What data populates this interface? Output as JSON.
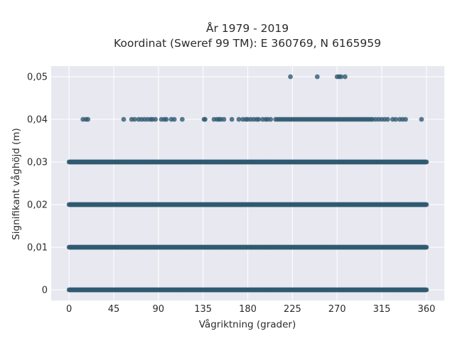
{
  "chart_data": {
    "type": "scatter",
    "title_lines": [
      "År 1979 - 2019",
      "Koordinat (Sweref 99 TM): E 360769, N 6165959"
    ],
    "xlabel": "Vågriktning (grader)",
    "ylabel": "Signifikant våghöjd (m)",
    "xlim": [
      -18,
      378
    ],
    "ylim": [
      -0.0025,
      0.0525
    ],
    "xticks": [
      0,
      45,
      90,
      135,
      180,
      225,
      270,
      315,
      360
    ],
    "xtick_labels": [
      "0",
      "45",
      "90",
      "135",
      "180",
      "225",
      "270",
      "315",
      "360"
    ],
    "yticks": [
      0,
      0.01,
      0.02,
      0.03,
      0.04,
      0.05
    ],
    "ytick_labels": [
      "0",
      "0,01",
      "0,02",
      "0,03",
      "0,04",
      "0,05"
    ],
    "grid": true,
    "legend": "none",
    "marker_color": "#305a71",
    "background_color": "#e8e8f0",
    "grid_color": "#ffffff",
    "series": [
      {
        "dense_ranges": [
          {
            "y": 0,
            "x_start": 0,
            "x_end": 360
          },
          {
            "y": 0.01,
            "x_start": 0,
            "x_end": 360
          },
          {
            "y": 0.02,
            "x_start": 0,
            "x_end": 360
          },
          {
            "y": 0.03,
            "x_start": 0,
            "x_end": 360
          }
        ],
        "points": [
          {
            "x": 14,
            "y": 0.04
          },
          {
            "x": 17,
            "y": 0.04
          },
          {
            "x": 19,
            "y": 0.04
          },
          {
            "x": 55,
            "y": 0.04
          },
          {
            "x": 63,
            "y": 0.04
          },
          {
            "x": 66,
            "y": 0.04
          },
          {
            "x": 70,
            "y": 0.04
          },
          {
            "x": 73,
            "y": 0.04
          },
          {
            "x": 76,
            "y": 0.04
          },
          {
            "x": 79,
            "y": 0.04
          },
          {
            "x": 82,
            "y": 0.04
          },
          {
            "x": 84,
            "y": 0.04
          },
          {
            "x": 87,
            "y": 0.04
          },
          {
            "x": 93,
            "y": 0.04
          },
          {
            "x": 96,
            "y": 0.04
          },
          {
            "x": 98,
            "y": 0.04
          },
          {
            "x": 103,
            "y": 0.04
          },
          {
            "x": 106,
            "y": 0.04
          },
          {
            "x": 114,
            "y": 0.04
          },
          {
            "x": 136,
            "y": 0.04
          },
          {
            "x": 137,
            "y": 0.04
          },
          {
            "x": 146,
            "y": 0.04
          },
          {
            "x": 149,
            "y": 0.04
          },
          {
            "x": 151,
            "y": 0.04
          },
          {
            "x": 153,
            "y": 0.04
          },
          {
            "x": 156,
            "y": 0.04
          },
          {
            "x": 164,
            "y": 0.04
          },
          {
            "x": 171,
            "y": 0.04
          },
          {
            "x": 175,
            "y": 0.04
          },
          {
            "x": 178,
            "y": 0.04
          },
          {
            "x": 180,
            "y": 0.04
          },
          {
            "x": 183,
            "y": 0.04
          },
          {
            "x": 186,
            "y": 0.04
          },
          {
            "x": 189,
            "y": 0.04
          },
          {
            "x": 191,
            "y": 0.04
          },
          {
            "x": 195,
            "y": 0.04
          },
          {
            "x": 198,
            "y": 0.04
          },
          {
            "x": 200,
            "y": 0.04
          },
          {
            "x": 203,
            "y": 0.04
          },
          {
            "x": 208,
            "y": 0.04
          },
          {
            "x": 210,
            "y": 0.04
          },
          {
            "x": 212,
            "y": 0.04
          },
          {
            "x": 214,
            "y": 0.04
          },
          {
            "x": 216,
            "y": 0.04
          },
          {
            "x": 218,
            "y": 0.04
          },
          {
            "x": 220,
            "y": 0.04
          },
          {
            "x": 222,
            "y": 0.04
          },
          {
            "x": 224,
            "y": 0.04
          },
          {
            "x": 226,
            "y": 0.04
          },
          {
            "x": 228,
            "y": 0.04
          },
          {
            "x": 230,
            "y": 0.04
          },
          {
            "x": 232,
            "y": 0.04
          },
          {
            "x": 234,
            "y": 0.04
          },
          {
            "x": 236,
            "y": 0.04
          },
          {
            "x": 238,
            "y": 0.04
          },
          {
            "x": 240,
            "y": 0.04
          },
          {
            "x": 242,
            "y": 0.04
          },
          {
            "x": 244,
            "y": 0.04
          },
          {
            "x": 246,
            "y": 0.04
          },
          {
            "x": 248,
            "y": 0.04
          },
          {
            "x": 250,
            "y": 0.04
          },
          {
            "x": 252,
            "y": 0.04
          },
          {
            "x": 254,
            "y": 0.04
          },
          {
            "x": 256,
            "y": 0.04
          },
          {
            "x": 258,
            "y": 0.04
          },
          {
            "x": 260,
            "y": 0.04
          },
          {
            "x": 262,
            "y": 0.04
          },
          {
            "x": 264,
            "y": 0.04
          },
          {
            "x": 266,
            "y": 0.04
          },
          {
            "x": 268,
            "y": 0.04
          },
          {
            "x": 270,
            "y": 0.04
          },
          {
            "x": 272,
            "y": 0.04
          },
          {
            "x": 274,
            "y": 0.04
          },
          {
            "x": 276,
            "y": 0.04
          },
          {
            "x": 278,
            "y": 0.04
          },
          {
            "x": 280,
            "y": 0.04
          },
          {
            "x": 282,
            "y": 0.04
          },
          {
            "x": 284,
            "y": 0.04
          },
          {
            "x": 286,
            "y": 0.04
          },
          {
            "x": 288,
            "y": 0.04
          },
          {
            "x": 290,
            "y": 0.04
          },
          {
            "x": 292,
            "y": 0.04
          },
          {
            "x": 294,
            "y": 0.04
          },
          {
            "x": 296,
            "y": 0.04
          },
          {
            "x": 298,
            "y": 0.04
          },
          {
            "x": 300,
            "y": 0.04
          },
          {
            "x": 302,
            "y": 0.04
          },
          {
            "x": 304,
            "y": 0.04
          },
          {
            "x": 306,
            "y": 0.04
          },
          {
            "x": 309,
            "y": 0.04
          },
          {
            "x": 312,
            "y": 0.04
          },
          {
            "x": 315,
            "y": 0.04
          },
          {
            "x": 318,
            "y": 0.04
          },
          {
            "x": 321,
            "y": 0.04
          },
          {
            "x": 326,
            "y": 0.04
          },
          {
            "x": 329,
            "y": 0.04
          },
          {
            "x": 333,
            "y": 0.04
          },
          {
            "x": 336,
            "y": 0.04
          },
          {
            "x": 339,
            "y": 0.04
          },
          {
            "x": 355,
            "y": 0.04
          },
          {
            "x": 223,
            "y": 0.05
          },
          {
            "x": 250,
            "y": 0.05
          },
          {
            "x": 270,
            "y": 0.05
          },
          {
            "x": 272,
            "y": 0.05
          },
          {
            "x": 274,
            "y": 0.05
          },
          {
            "x": 278,
            "y": 0.05
          }
        ]
      }
    ]
  }
}
